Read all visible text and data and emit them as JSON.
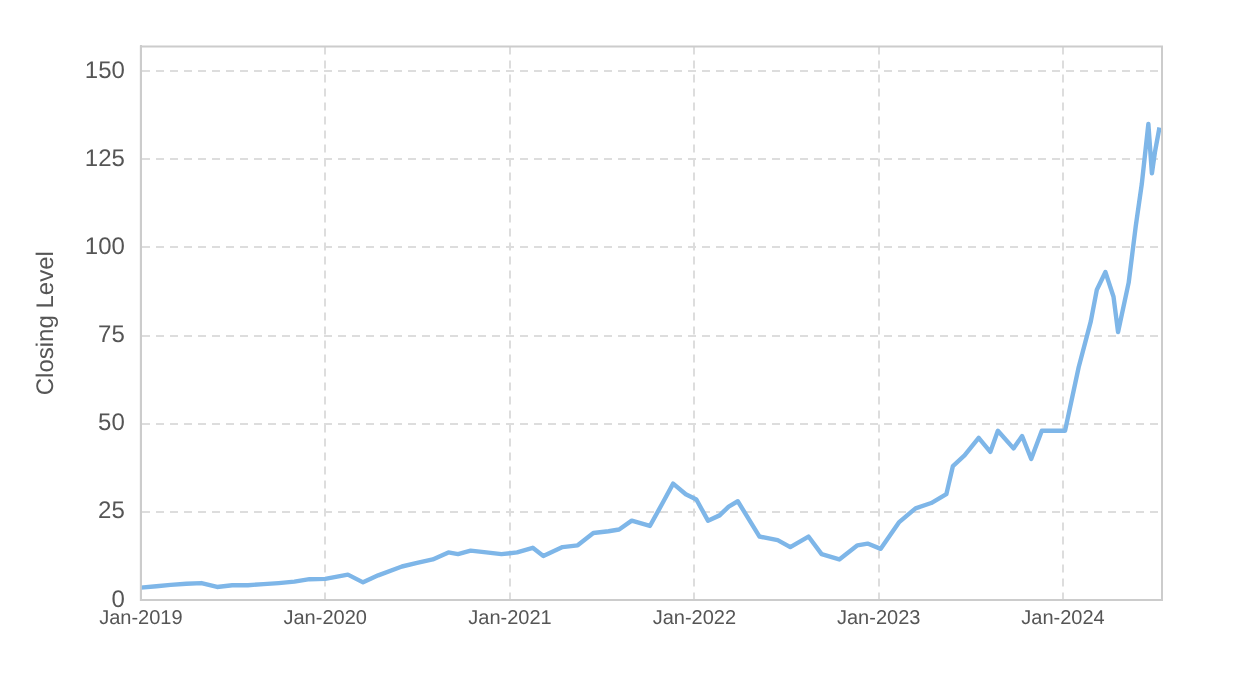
{
  "chart_data": {
    "type": "line",
    "ylabel": "Closing Level",
    "x": [
      "2019-01-01",
      "2019-02-01",
      "2019-03-01",
      "2019-04-01",
      "2019-05-01",
      "2019-06-01",
      "2019-07-01",
      "2019-08-01",
      "2019-09-01",
      "2019-10-01",
      "2019-11-01",
      "2019-12-01",
      "2020-01-01",
      "2020-02-15",
      "2020-03-16",
      "2020-04-15",
      "2020-06-01",
      "2020-07-01",
      "2020-08-01",
      "2020-09-01",
      "2020-09-20",
      "2020-10-15",
      "2020-11-15",
      "2020-12-15",
      "2021-01-15",
      "2021-02-15",
      "2021-03-08",
      "2021-04-15",
      "2021-05-15",
      "2021-06-15",
      "2021-07-15",
      "2021-08-05",
      "2021-08-30",
      "2021-10-05",
      "2021-11-01",
      "2021-11-20",
      "2021-12-15",
      "2022-01-05",
      "2022-01-28",
      "2022-02-20",
      "2022-03-10",
      "2022-03-28",
      "2022-05-10",
      "2022-06-15",
      "2022-07-10",
      "2022-08-15",
      "2022-09-10",
      "2022-10-15",
      "2022-11-20",
      "2022-12-10",
      "2023-01-05",
      "2023-02-10",
      "2023-03-15",
      "2023-04-15",
      "2023-05-15",
      "2023-05-28",
      "2023-06-20",
      "2023-07-18",
      "2023-08-10",
      "2023-08-25",
      "2023-09-25",
      "2023-10-12",
      "2023-10-30",
      "2023-11-20",
      "2023-12-15",
      "2024-01-05",
      "2024-02-01",
      "2024-02-25",
      "2024-03-08",
      "2024-03-25",
      "2024-04-10",
      "2024-04-19",
      "2024-05-10",
      "2024-05-24",
      "2024-06-05",
      "2024-06-18",
      "2024-06-25",
      "2024-07-01",
      "2024-07-10"
    ],
    "series": [
      {
        "color": "#7eb6e8",
        "values": [
          3.5,
          3.9,
          4.3,
          4.6,
          4.8,
          3.7,
          4.2,
          4.2,
          4.5,
          4.8,
          5.2,
          5.9,
          6.0,
          7.2,
          5.0,
          7.0,
          9.5,
          10.5,
          11.5,
          13.5,
          13.0,
          14.0,
          13.5,
          13.0,
          13.5,
          14.8,
          12.5,
          15.0,
          15.5,
          19.0,
          19.5,
          20.0,
          22.5,
          21.0,
          28.0,
          33.0,
          30.0,
          28.5,
          22.5,
          24.0,
          26.5,
          28.0,
          18.0,
          17.0,
          15.0,
          18.0,
          13.0,
          11.5,
          15.5,
          16.0,
          14.5,
          22.0,
          26.0,
          27.5,
          30.0,
          38.0,
          41.0,
          46.0,
          42.0,
          48.0,
          43.0,
          46.5,
          40.0,
          48.0,
          48.0,
          48.0,
          66.0,
          79.0,
          88.0,
          93.0,
          86.0,
          76.0,
          90.0,
          106.0,
          118.0,
          135.0,
          121.0,
          127.0,
          134.0
        ]
      }
    ],
    "xlim": [
      "2019-01-01",
      "2024-07-15"
    ],
    "xticks": [
      {
        "value": "2019-01-01",
        "label": "Jan-2019"
      },
      {
        "value": "2020-01-01",
        "label": "Jan-2020"
      },
      {
        "value": "2021-01-01",
        "label": "Jan-2021"
      },
      {
        "value": "2022-01-01",
        "label": "Jan-2022"
      },
      {
        "value": "2023-01-01",
        "label": "Jan-2023"
      },
      {
        "value": "2024-01-01",
        "label": "Jan-2024"
      }
    ],
    "ylim": [
      0,
      157
    ],
    "yticks": [
      0,
      25,
      50,
      75,
      100,
      125,
      150
    ],
    "grid": true,
    "marker": "none",
    "line_style": "solid"
  }
}
